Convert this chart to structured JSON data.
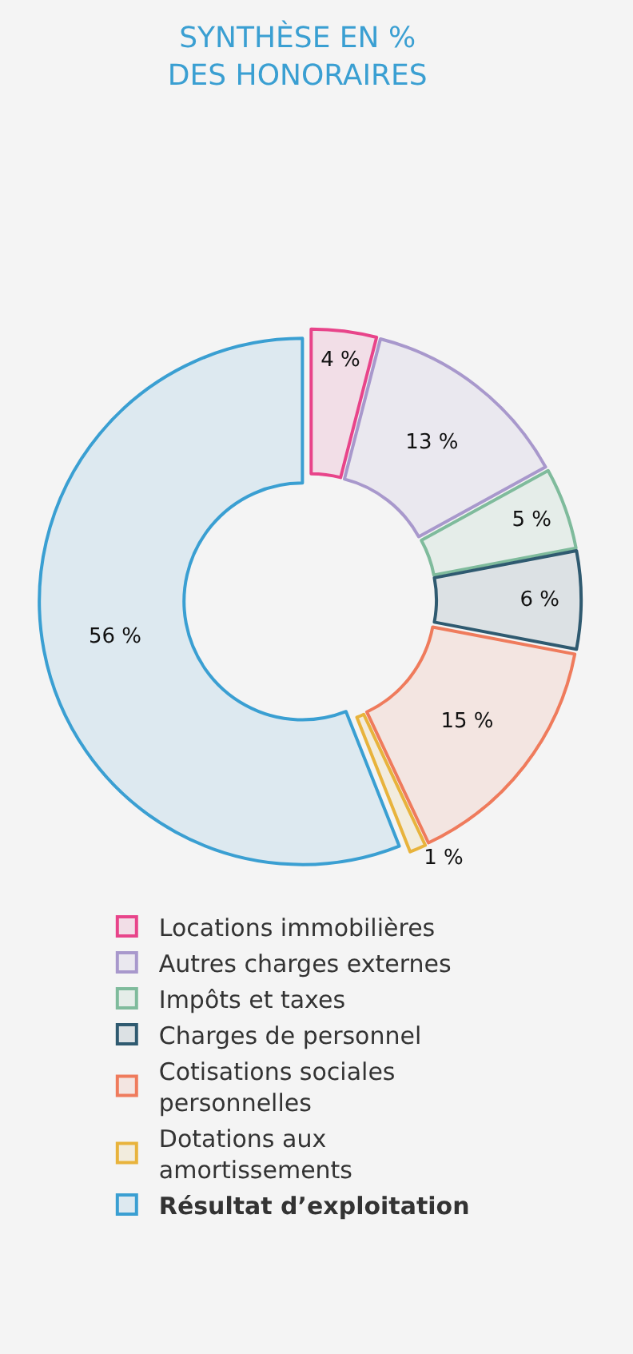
{
  "chart_data": {
    "type": "donut",
    "title": "SYNTHÈSE EN %\nDES HONORAIRES",
    "categories": [
      "Locations immobilières",
      "Autres charges externes",
      "Impôts et taxes",
      "Charges de personnel",
      "Cotisations sociales personnelles",
      "Dotations aux amortissements",
      "Résultat d’exploitation"
    ],
    "values": [
      4,
      13,
      5,
      6,
      15,
      1,
      56
    ],
    "value_labels": [
      "4 %",
      "13 %",
      "5 %",
      "6 %",
      "15 %",
      "1 %",
      "56 %"
    ],
    "colors": [
      "#e8448a",
      "#a898cc",
      "#7fbb9c",
      "#2f5a70",
      "#ef7b5c",
      "#e8b33c",
      "#3a9fd2"
    ],
    "legend": "bottom"
  }
}
